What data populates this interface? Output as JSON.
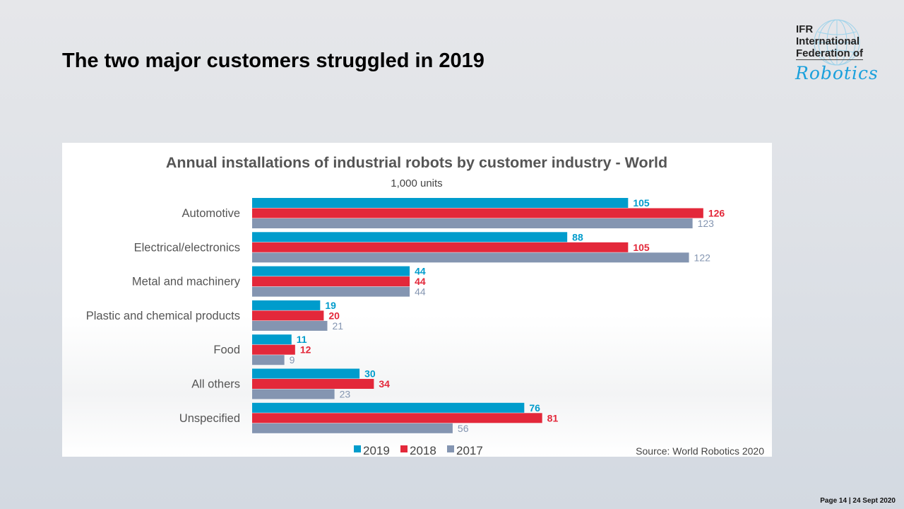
{
  "slide": {
    "title": "The two major customers struggled in 2019",
    "footer": "Page 14 | 24 Sept 2020"
  },
  "logo": {
    "line1": "IFR",
    "line2": "International",
    "line3": "Federation of",
    "line4": "Robotics"
  },
  "colors": {
    "2019": "#009ccc",
    "2018": "#e3283a",
    "2017": "#8495b1"
  },
  "chart_data": {
    "type": "bar",
    "orientation": "horizontal",
    "title": "Annual installations of industrial robots by customer industry - World",
    "subtitle": "1,000 units",
    "source": "Source: World Robotics 2020",
    "categories": [
      "Automotive",
      "Electrical/electronics",
      "Metal and machinery",
      "Plastic and chemical products",
      "Food",
      "All others",
      "Unspecified"
    ],
    "series": [
      {
        "name": "2019",
        "values": [
          105,
          88,
          44,
          19,
          11,
          30,
          76
        ]
      },
      {
        "name": "2018",
        "values": [
          126,
          105,
          44,
          20,
          12,
          34,
          81
        ]
      },
      {
        "name": "2017",
        "values": [
          123,
          122,
          44,
          21,
          9,
          23,
          56
        ]
      }
    ],
    "xlim": [
      0,
      130
    ],
    "grid": false,
    "legend": "bottom-center",
    "data_labels": true
  }
}
